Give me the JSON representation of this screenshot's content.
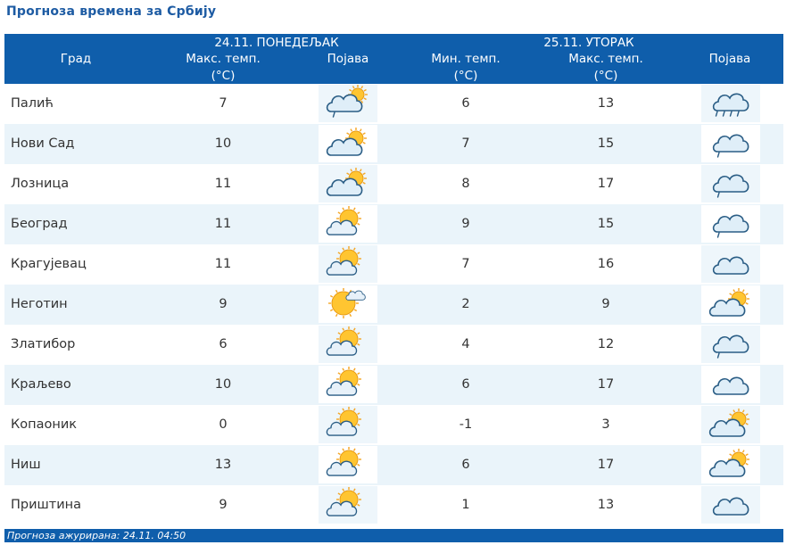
{
  "title": "Прогноза времена за Србију",
  "header": {
    "city": "Град",
    "day1": "24.11. ПОНЕДЕЉАК",
    "day2": "25.11. УТОРАК",
    "max_temp": "Макс. темп.",
    "min_temp": "Мин. темп.",
    "unit": "(°C)",
    "phenomenon": "Појава"
  },
  "rows": [
    {
      "city": "Палић",
      "d1_max": "7",
      "d1_icon": "cloud-sun-rain-icon",
      "d2_min": "6",
      "d2_max": "13",
      "d2_icon": "cloud-rain-icon"
    },
    {
      "city": "Нови Сад",
      "d1_max": "10",
      "d1_icon": "cloud-sun-icon",
      "d2_min": "7",
      "d2_max": "15",
      "d2_icon": "cloud-drizzle-icon"
    },
    {
      "city": "Лозница",
      "d1_max": "11",
      "d1_icon": "cloud-sun-icon",
      "d2_min": "8",
      "d2_max": "17",
      "d2_icon": "cloud-drizzle-icon"
    },
    {
      "city": "Београд",
      "d1_max": "11",
      "d1_icon": "sun-cloud-icon",
      "d2_min": "9",
      "d2_max": "15",
      "d2_icon": "cloud-drizzle-icon"
    },
    {
      "city": "Крагујевац",
      "d1_max": "11",
      "d1_icon": "sun-cloud-icon",
      "d2_min": "7",
      "d2_max": "16",
      "d2_icon": "cloud-icon"
    },
    {
      "city": "Неготин",
      "d1_max": "9",
      "d1_icon": "sun-small-cloud-icon",
      "d2_min": "2",
      "d2_max": "9",
      "d2_icon": "cloud-sun-icon"
    },
    {
      "city": "Златибор",
      "d1_max": "6",
      "d1_icon": "sun-cloud-icon",
      "d2_min": "4",
      "d2_max": "12",
      "d2_icon": "cloud-drizzle-icon"
    },
    {
      "city": "Краљево",
      "d1_max": "10",
      "d1_icon": "sun-cloud-icon",
      "d2_min": "6",
      "d2_max": "17",
      "d2_icon": "cloud-icon"
    },
    {
      "city": "Копаоник",
      "d1_max": "0",
      "d1_icon": "sun-cloud-icon",
      "d2_min": "-1",
      "d2_max": "3",
      "d2_icon": "cloud-sun-icon"
    },
    {
      "city": "Ниш",
      "d1_max": "13",
      "d1_icon": "sun-cloud-icon",
      "d2_min": "6",
      "d2_max": "17",
      "d2_icon": "cloud-sun-icon"
    },
    {
      "city": "Приштина",
      "d1_max": "9",
      "d1_icon": "sun-cloud-icon",
      "d2_min": "1",
      "d2_max": "13",
      "d2_icon": "cloud-icon"
    }
  ],
  "footer": "Прогноза ажурирана:  24.11.  04:50",
  "colors": {
    "header_bg": "#0f5eab",
    "title": "#1d5ba3",
    "alt_row": "#eaf4fa"
  }
}
